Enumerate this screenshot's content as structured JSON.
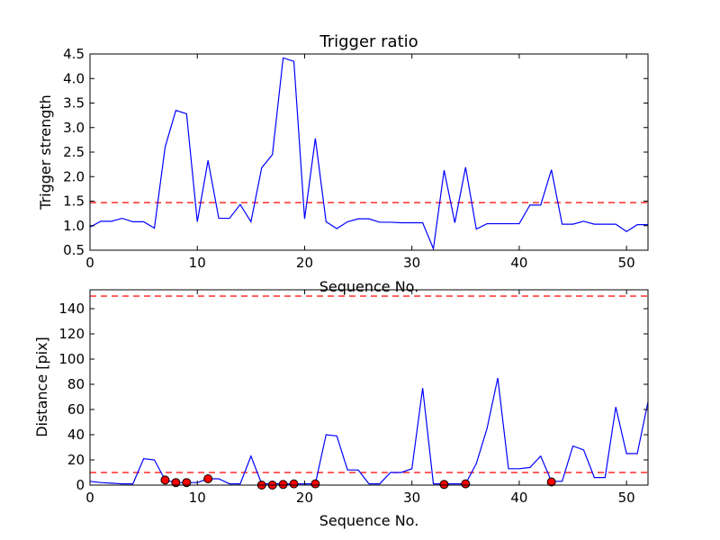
{
  "chart_data": [
    {
      "type": "line",
      "title": "Trigger ratio",
      "xlabel": "Sequence No.",
      "ylabel": "Trigger strength",
      "xlim": [
        0,
        52
      ],
      "ylim": [
        0.5,
        4.5
      ],
      "xticks": [
        "0",
        "10",
        "20",
        "30",
        "40",
        "50"
      ],
      "yticks": [
        "0.5",
        "1.0",
        "1.5",
        "2.0",
        "2.5",
        "3.0",
        "3.5",
        "4.0",
        "4.5"
      ],
      "grid": false,
      "line_color": "#0000ff",
      "threshold_color": "#ff0000",
      "threshold": 1.47,
      "series": [
        {
          "x": [
            0,
            1,
            2,
            3,
            4,
            5,
            6,
            7,
            8,
            9,
            10,
            11,
            12,
            13,
            14,
            15,
            16,
            17,
            18,
            19,
            20,
            21,
            22,
            23,
            24,
            25,
            26,
            27,
            28,
            29,
            30,
            31,
            32,
            33,
            34,
            35,
            36,
            37,
            38,
            39,
            40,
            41,
            42,
            43,
            44,
            45,
            46,
            47,
            48,
            49,
            50,
            51,
            52
          ],
          "values": [
            0.97,
            1.09,
            1.09,
            1.15,
            1.08,
            1.08,
            0.95,
            2.6,
            3.35,
            3.28,
            1.08,
            2.33,
            1.15,
            1.15,
            1.43,
            1.08,
            2.18,
            2.45,
            4.42,
            4.35,
            1.14,
            2.78,
            1.08,
            0.94,
            1.08,
            1.14,
            1.14,
            1.07,
            1.07,
            1.06,
            1.06,
            1.06,
            0.53,
            2.13,
            1.06,
            2.19,
            0.93,
            1.04,
            1.04,
            1.04,
            1.04,
            1.42,
            1.42,
            2.14,
            1.03,
            1.03,
            1.09,
            1.03,
            1.03,
            1.03,
            0.88,
            1.02,
            1.02
          ]
        }
      ]
    },
    {
      "type": "line",
      "title": "",
      "xlabel": "Sequence No.",
      "ylabel": "Distance [pix]",
      "xlim": [
        0,
        52
      ],
      "ylim": [
        0,
        155
      ],
      "xticks": [
        "0",
        "10",
        "20",
        "30",
        "40",
        "50"
      ],
      "yticks": [
        "0",
        "20",
        "40",
        "60",
        "80",
        "100",
        "120",
        "140"
      ],
      "grid": false,
      "line_color": "#0000ff",
      "threshold_color": "#ff0000",
      "marker_color": "#ff0000",
      "thresholds": [
        10,
        150
      ],
      "series": [
        {
          "x": [
            0,
            1,
            2,
            3,
            4,
            5,
            6,
            7,
            8,
            9,
            10,
            11,
            12,
            13,
            14,
            15,
            16,
            17,
            18,
            19,
            20,
            21,
            22,
            23,
            24,
            25,
            26,
            27,
            28,
            29,
            30,
            31,
            32,
            33,
            34,
            35,
            36,
            37,
            38,
            39,
            40,
            41,
            42,
            43,
            44,
            45,
            46,
            47,
            48,
            49,
            50,
            51,
            52
          ],
          "values": [
            3,
            2,
            1.5,
            1,
            1,
            21,
            20,
            4,
            2,
            2,
            2,
            5,
            5,
            1,
            1,
            23,
            1,
            1,
            1,
            1,
            1,
            1,
            40,
            39,
            12,
            12,
            1,
            1,
            10,
            10,
            13,
            77,
            1,
            1,
            1,
            1,
            17,
            45,
            85,
            13,
            13,
            14,
            23,
            3,
            3,
            31,
            28,
            6,
            6,
            62,
            25,
            25,
            66
          ]
        }
      ],
      "markers": [
        {
          "x": 7,
          "y": 4
        },
        {
          "x": 8,
          "y": 2
        },
        {
          "x": 9,
          "y": 2
        },
        {
          "x": 11,
          "y": 5
        },
        {
          "x": 16,
          "y": 0
        },
        {
          "x": 17,
          "y": 0
        },
        {
          "x": 18,
          "y": 0.5
        },
        {
          "x": 19,
          "y": 1
        },
        {
          "x": 21,
          "y": 1
        },
        {
          "x": 33,
          "y": 0.5
        },
        {
          "x": 35,
          "y": 1
        },
        {
          "x": 43,
          "y": 2.5
        }
      ]
    }
  ]
}
